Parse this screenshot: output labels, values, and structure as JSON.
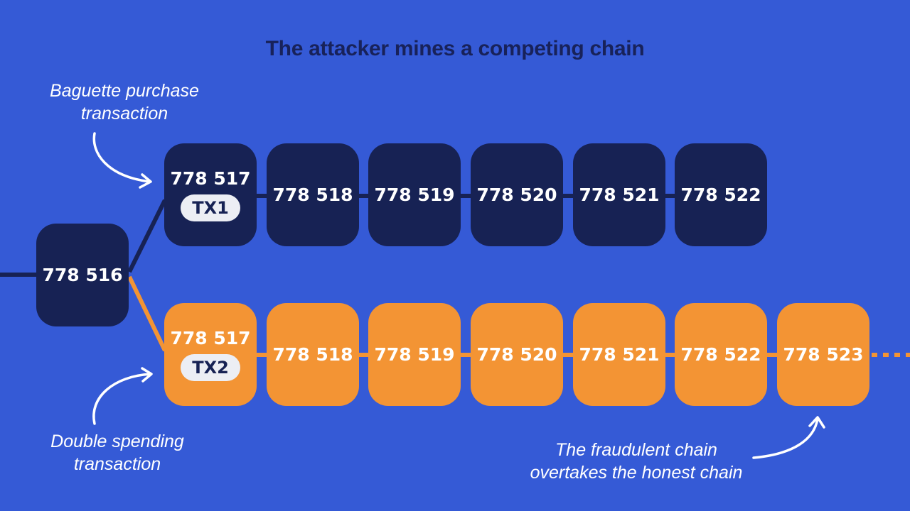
{
  "title": "The attacker mines a competing chain",
  "colors": {
    "background": "#355AD6",
    "honest": "#172254",
    "fraudulent": "#F39434",
    "tx_badge": "#ECEEF4"
  },
  "root_block": {
    "label": "778 516"
  },
  "honest_chain": {
    "blocks": [
      {
        "label": "778 517",
        "tx": "TX1"
      },
      {
        "label": "778 518"
      },
      {
        "label": "778 519"
      },
      {
        "label": "778 520"
      },
      {
        "label": "778 521"
      },
      {
        "label": "778 522"
      }
    ]
  },
  "fraudulent_chain": {
    "blocks": [
      {
        "label": "778 517",
        "tx": "TX2"
      },
      {
        "label": "778 518"
      },
      {
        "label": "778 519"
      },
      {
        "label": "778 520"
      },
      {
        "label": "778 521"
      },
      {
        "label": "778 522"
      },
      {
        "label": "778 523"
      }
    ]
  },
  "annotations": {
    "baguette": [
      "Baguette purchase",
      "transaction"
    ],
    "double_spend": [
      "Double spending",
      "transaction"
    ],
    "overtakes": [
      "The fraudulent chain",
      "overtakes the honest chain"
    ]
  }
}
